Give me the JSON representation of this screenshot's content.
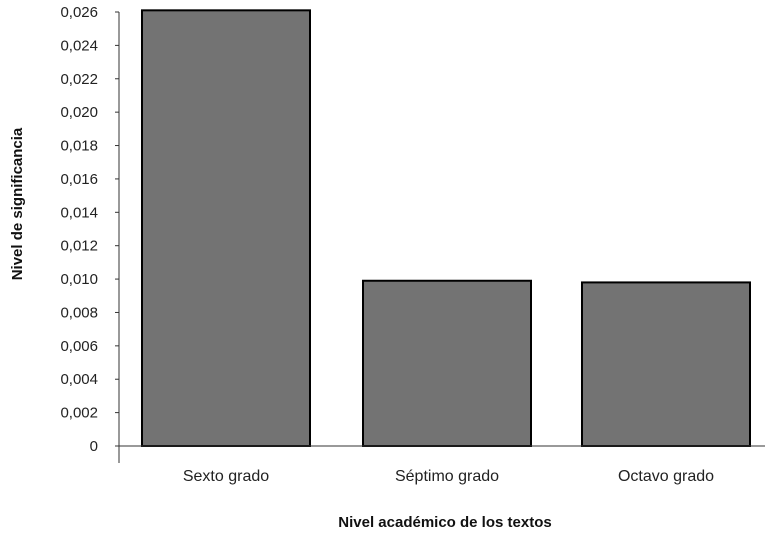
{
  "chart_data": {
    "type": "bar",
    "categories": [
      "Sexto grado",
      "Séptimo grado",
      "Octavo grado"
    ],
    "values": [
      0.0261,
      0.0099,
      0.0098
    ],
    "xlabel": "Nivel académico de los textos",
    "ylabel": "Nivel de significancia",
    "ylim": [
      0,
      0.026
    ],
    "yticks": [
      "0",
      "0,002",
      "0,004",
      "0,006",
      "0,008",
      "0,010",
      "0,012",
      "0,014",
      "0,016",
      "0,018",
      "0,020",
      "0,022",
      "0,024",
      "0,026"
    ],
    "grid": false,
    "legend": "none",
    "bar_color": "#737373",
    "bar_edge_color": "#000000"
  }
}
